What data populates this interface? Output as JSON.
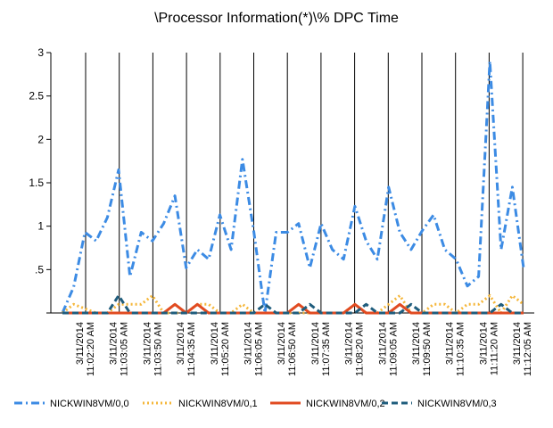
{
  "chart_data": {
    "type": "line",
    "title": "\\Processor Information(*)\\% DPC Time",
    "xlabel": "",
    "ylabel": "",
    "ylim": [
      0,
      3
    ],
    "y_ticks": [
      "",
      ".5",
      "1",
      "1.5",
      "2",
      "2.5",
      "3"
    ],
    "x_tick_labels": [
      [
        "3/11/2014",
        "11:02:20 AM"
      ],
      [
        "3/11/2014",
        "11:03:05 AM"
      ],
      [
        "3/11/2014",
        "11:03:50 AM"
      ],
      [
        "3/11/2014",
        "11:04:35 AM"
      ],
      [
        "3/11/2014",
        "11:05:20 AM"
      ],
      [
        "3/11/2014",
        "11:06:05 AM"
      ],
      [
        "3/11/2014",
        "11:06:50 AM"
      ],
      [
        "3/11/2014",
        "11:07:35 AM"
      ],
      [
        "3/11/2014",
        "11:08:20 AM"
      ],
      [
        "3/11/2014",
        "11:09:05 AM"
      ],
      [
        "3/11/2014",
        "11:09:50 AM"
      ],
      [
        "3/11/2014",
        "11:10:35 AM"
      ],
      [
        "3/11/2014",
        "11:11:20 AM"
      ],
      [
        "3/11/2014",
        "11:12:05 AM"
      ]
    ],
    "grid": "vertical",
    "legend_position": "bottom",
    "series": [
      {
        "name": "NICKWIN8VM/0,0",
        "color": "#3c8be4",
        "style": "dash-dot",
        "values": [
          0,
          0.3,
          0.93,
          0.83,
          1.1,
          1.65,
          0.42,
          0.93,
          0.83,
          1.03,
          1.35,
          0.52,
          0.73,
          0.62,
          1.13,
          0.73,
          1.77,
          0.95,
          0,
          0.93,
          0.93,
          1.03,
          0.52,
          1.03,
          0.73,
          0.62,
          1.23,
          0.83,
          0.62,
          1.45,
          0.93,
          0.73,
          0.95,
          1.13,
          0.73,
          0.62,
          0.31,
          0.42,
          2.9,
          0.73,
          1.45,
          0.52
        ]
      },
      {
        "name": "NICKWIN8VM/0,1",
        "color": "#f5b73b",
        "style": "dotted",
        "values": [
          0,
          0.1,
          0.05,
          0,
          0,
          0.1,
          0.1,
          0.1,
          0.2,
          0,
          0,
          0,
          0.1,
          0.1,
          0,
          0,
          0.1,
          0,
          0,
          0,
          0,
          0,
          0,
          0,
          0,
          0,
          0.1,
          0,
          0,
          0.1,
          0.2,
          0,
          0,
          0.1,
          0.1,
          0,
          0.1,
          0.1,
          0.2,
          0,
          0.2,
          0.1
        ]
      },
      {
        "name": "NICKWIN8VM/0,2",
        "color": "#e14b21",
        "style": "solid",
        "values": [
          0,
          0,
          0,
          0,
          0,
          0,
          0,
          0,
          0,
          0,
          0.1,
          0,
          0.1,
          0,
          0,
          0,
          0,
          0,
          0,
          0,
          0,
          0.1,
          0,
          0,
          0,
          0,
          0.1,
          0,
          0,
          0,
          0.1,
          0,
          0,
          0,
          0,
          0,
          0,
          0,
          0,
          0,
          0,
          0
        ]
      },
      {
        "name": "NICKWIN8VM/0,3",
        "color": "#1f5d7d",
        "style": "dashed",
        "values": [
          0,
          0,
          0,
          0,
          0,
          0.2,
          0,
          0,
          0,
          0,
          0,
          0,
          0,
          0,
          0,
          0,
          0,
          0,
          0.1,
          0,
          0,
          0,
          0.1,
          0,
          0,
          0,
          0,
          0.1,
          0,
          0,
          0,
          0.1,
          0,
          0,
          0,
          0,
          0,
          0,
          0,
          0.1,
          0,
          0
        ]
      }
    ]
  }
}
